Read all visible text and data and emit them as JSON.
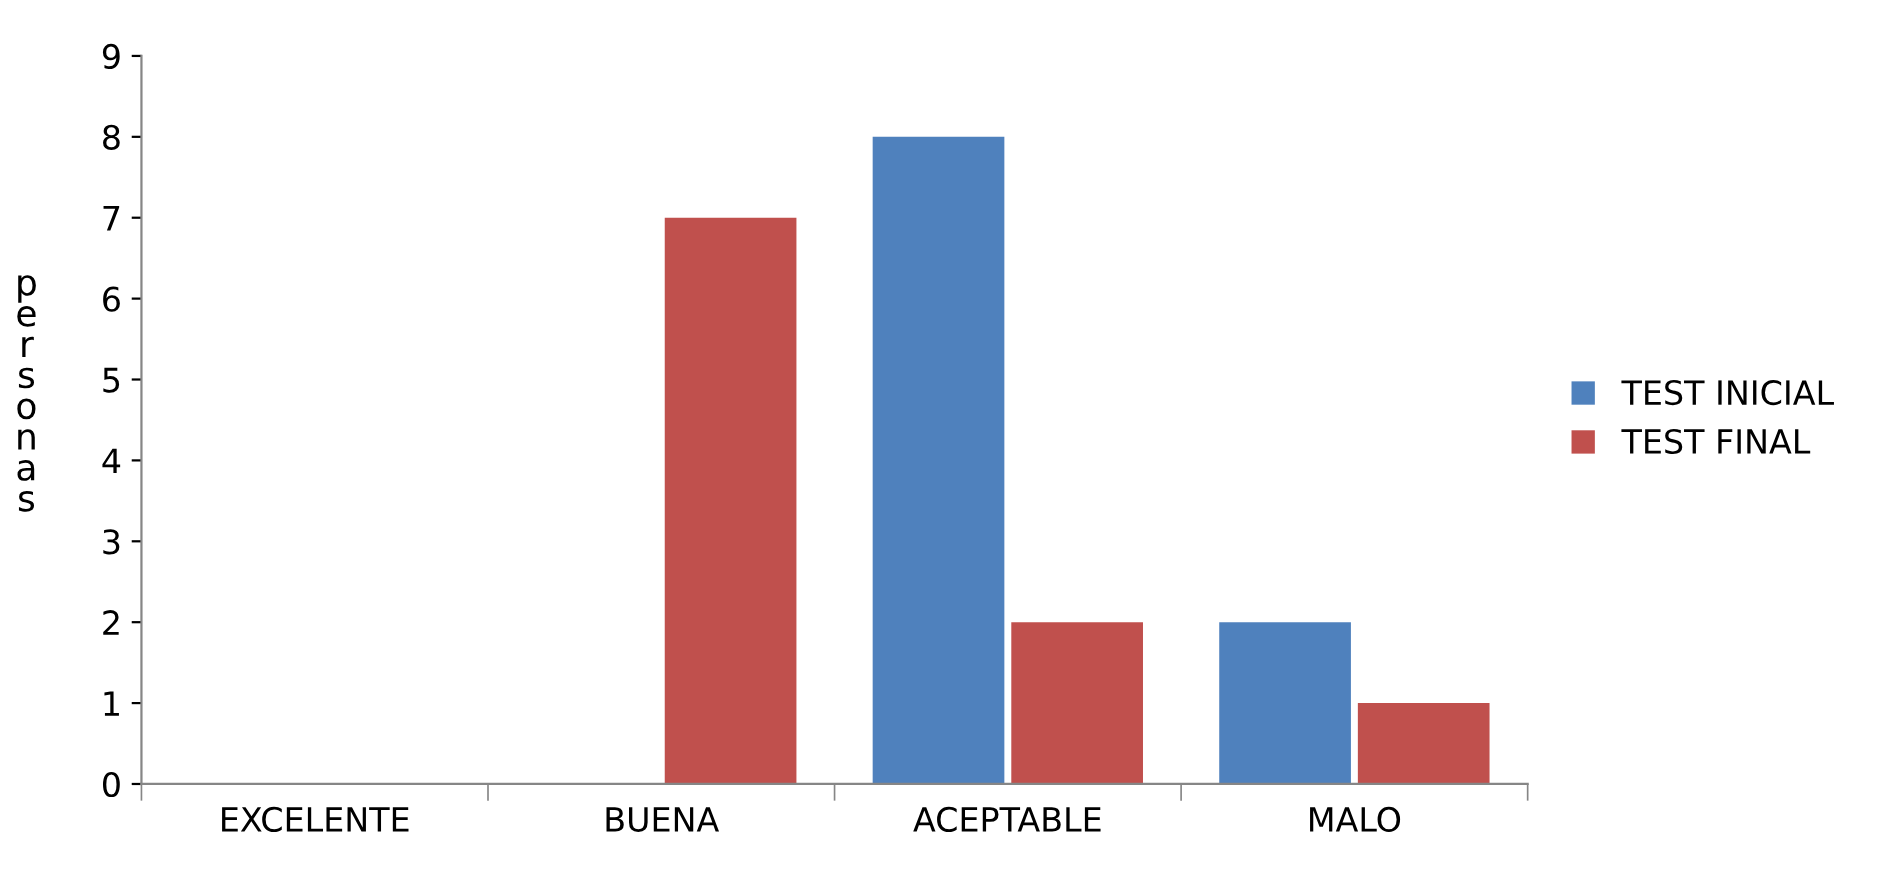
{
  "chart_data": {
    "type": "bar",
    "ylabel": "personas",
    "categories": [
      "EXCELENTE",
      "BUENA",
      "ACEPTABLE",
      "MALO"
    ],
    "series": [
      {
        "name": "TEST INICIAL",
        "color": "#4f81bd",
        "values": [
          0,
          0,
          8,
          2
        ]
      },
      {
        "name": "TEST FINAL",
        "color": "#c0504d",
        "values": [
          0,
          7,
          2,
          1
        ]
      }
    ],
    "ylim": [
      0,
      9
    ],
    "yticks": [
      0,
      1,
      2,
      3,
      4,
      5,
      6,
      7,
      8,
      9
    ],
    "grid": false,
    "legend": "right"
  }
}
